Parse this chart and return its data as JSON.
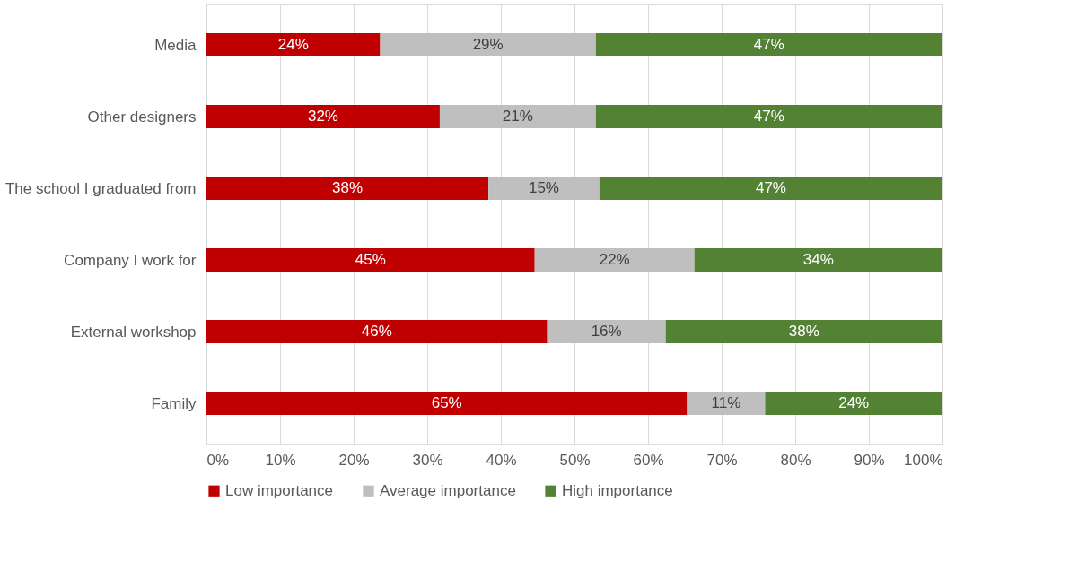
{
  "chart_data": {
    "type": "bar",
    "orientation": "horizontal",
    "stacked": true,
    "categories": [
      "Media",
      "Other designers",
      "The school I graduated from",
      "Company I work for",
      "External workshop",
      "Family"
    ],
    "series": [
      {
        "name": "Low importance",
        "color": "#c00000",
        "values": [
          23.6,
          31.7,
          38.3,
          44.6,
          46.3,
          65.3
        ],
        "value_labels": [
          "24%",
          "32%",
          "38%",
          "45%",
          "46%",
          "65%"
        ]
      },
      {
        "name": "Average importance",
        "color": "#bfbfbf",
        "values": [
          29.3,
          21.2,
          15.1,
          21.7,
          16.1,
          10.6
        ],
        "value_labels": [
          "29%",
          "21%",
          "15%",
          "22%",
          "16%",
          "11%"
        ]
      },
      {
        "name": "High importance",
        "color": "#548235",
        "values": [
          47.1,
          47.1,
          46.6,
          33.7,
          37.6,
          24.1
        ],
        "value_labels": [
          "47%",
          "47%",
          "47%",
          "34%",
          "38%",
          "24%"
        ]
      }
    ],
    "xlim": [
      0,
      100
    ],
    "xticks": [
      {
        "value": 0,
        "label": "0%"
      },
      {
        "value": 10,
        "label": "10%"
      },
      {
        "value": 20,
        "label": "20%"
      },
      {
        "value": 30,
        "label": "30%"
      },
      {
        "value": 40,
        "label": "40%"
      },
      {
        "value": 50,
        "label": "50%"
      },
      {
        "value": 60,
        "label": "60%"
      },
      {
        "value": 70,
        "label": "70%"
      },
      {
        "value": 80,
        "label": "80%"
      },
      {
        "value": 90,
        "label": "90%"
      },
      {
        "value": 100,
        "label": "100%"
      }
    ],
    "grid": "x",
    "legend": "bottom"
  }
}
